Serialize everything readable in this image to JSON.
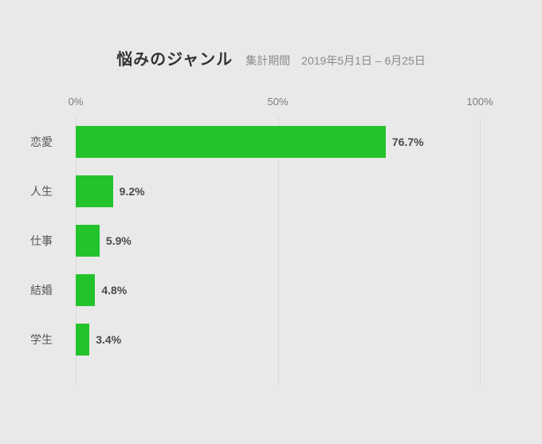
{
  "header": {
    "title": "悩みのジャンル",
    "subtitle_label": "集計期間",
    "subtitle_value": "2019年5月1日 – 6月25日"
  },
  "chart_data": {
    "type": "bar",
    "orientation": "horizontal",
    "title": "悩みのジャンル",
    "subtitle": "集計期間　2019年5月1日 – 6月25日",
    "categories": [
      "恋愛",
      "人生",
      "仕事",
      "結婚",
      "学生"
    ],
    "values": [
      76.7,
      9.2,
      5.9,
      4.8,
      3.4
    ],
    "value_labels": [
      "76.7%",
      "9.2%",
      "5.9%",
      "4.8%",
      "3.4%"
    ],
    "x_ticks": [
      "0%",
      "50%",
      "100%"
    ],
    "xlim": [
      0,
      100
    ],
    "grid": true,
    "legend": false,
    "bar_color": "#22c32b",
    "background_color": "#e9e9e9",
    "gridline_color": "#d8d8d8"
  }
}
